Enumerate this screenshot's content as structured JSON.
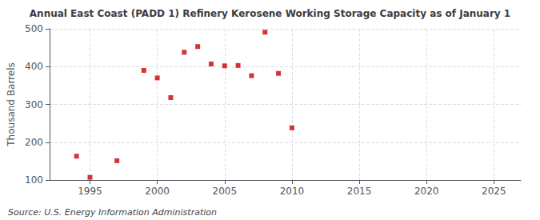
{
  "chart_data": {
    "type": "scatter",
    "title": "Annual East Coast (PADD 1) Refinery Kerosene Working Storage Capacity as of January 1",
    "y_label": "Thousand Barrels",
    "annotations": [
      "Source: U.S. Energy Information Administration"
    ],
    "x": [
      1994,
      1995,
      1997,
      1999,
      2000,
      2001,
      2002,
      2003,
      2004,
      2005,
      2006,
      2007,
      2008,
      2009,
      2010
    ],
    "values": [
      163,
      107,
      151,
      390,
      370,
      318,
      438,
      453,
      407,
      402,
      403,
      376,
      491,
      382,
      238
    ],
    "color": "#cc0000",
    "marker": "square",
    "xlim": [
      1992,
      2027
    ],
    "xticks": [
      1995,
      2000,
      2005,
      2010,
      2015,
      2020,
      2025
    ],
    "ylim": [
      100,
      500
    ],
    "yticks": [
      100,
      200,
      300,
      400,
      500
    ],
    "grid": true
  }
}
